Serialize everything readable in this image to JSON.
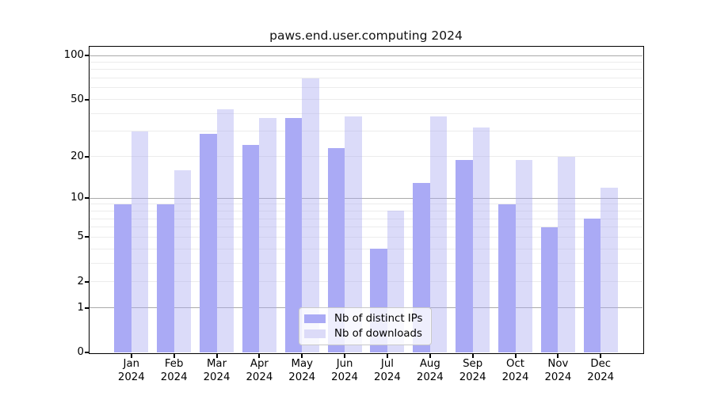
{
  "title": "paws.end.user.computing 2024",
  "chart_data": {
    "type": "bar",
    "title": "paws.end.user.computing 2024",
    "y_scale": "log1p",
    "grid": true,
    "legend_position": "bottom-center",
    "categories": [
      "Jan",
      "Feb",
      "Mar",
      "Apr",
      "May",
      "Jun",
      "Jul",
      "Aug",
      "Sep",
      "Oct",
      "Nov",
      "Dec"
    ],
    "year_label": "2024",
    "series": [
      {
        "name": "Nb of distinct IPs",
        "color": "#aaaaf5",
        "bar_css": "#aaaaf5",
        "values": [
          9,
          9,
          29,
          24,
          37,
          23,
          4,
          13,
          19,
          9,
          6,
          7
        ]
      },
      {
        "name": "Nb of downloads",
        "color": "#dcdbf8",
        "bar_css": "rgba(170,170,240,0.42)",
        "values": [
          30,
          16,
          43,
          37,
          70,
          38,
          8,
          38,
          32,
          19,
          20,
          12
        ]
      }
    ],
    "y_axis": {
      "tick_values": [
        100,
        50,
        20,
        10,
        5,
        2,
        1,
        0
      ],
      "tick_labels": [
        "100",
        "50",
        "20",
        "10",
        "5",
        "2",
        "1",
        "0"
      ],
      "major_gridlines": [
        1,
        10,
        100
      ],
      "minor_gridlines": [
        2,
        3,
        4,
        5,
        6,
        7,
        8,
        9,
        20,
        30,
        40,
        50,
        60,
        70,
        80,
        90
      ],
      "ylim": [
        0,
        114
      ]
    },
    "colors": {
      "axis": "#000000",
      "major_grid": "#aaaaaa",
      "minor_grid": "#ececec",
      "background": "#ffffff",
      "legend_border": "#c9c9c9"
    }
  }
}
